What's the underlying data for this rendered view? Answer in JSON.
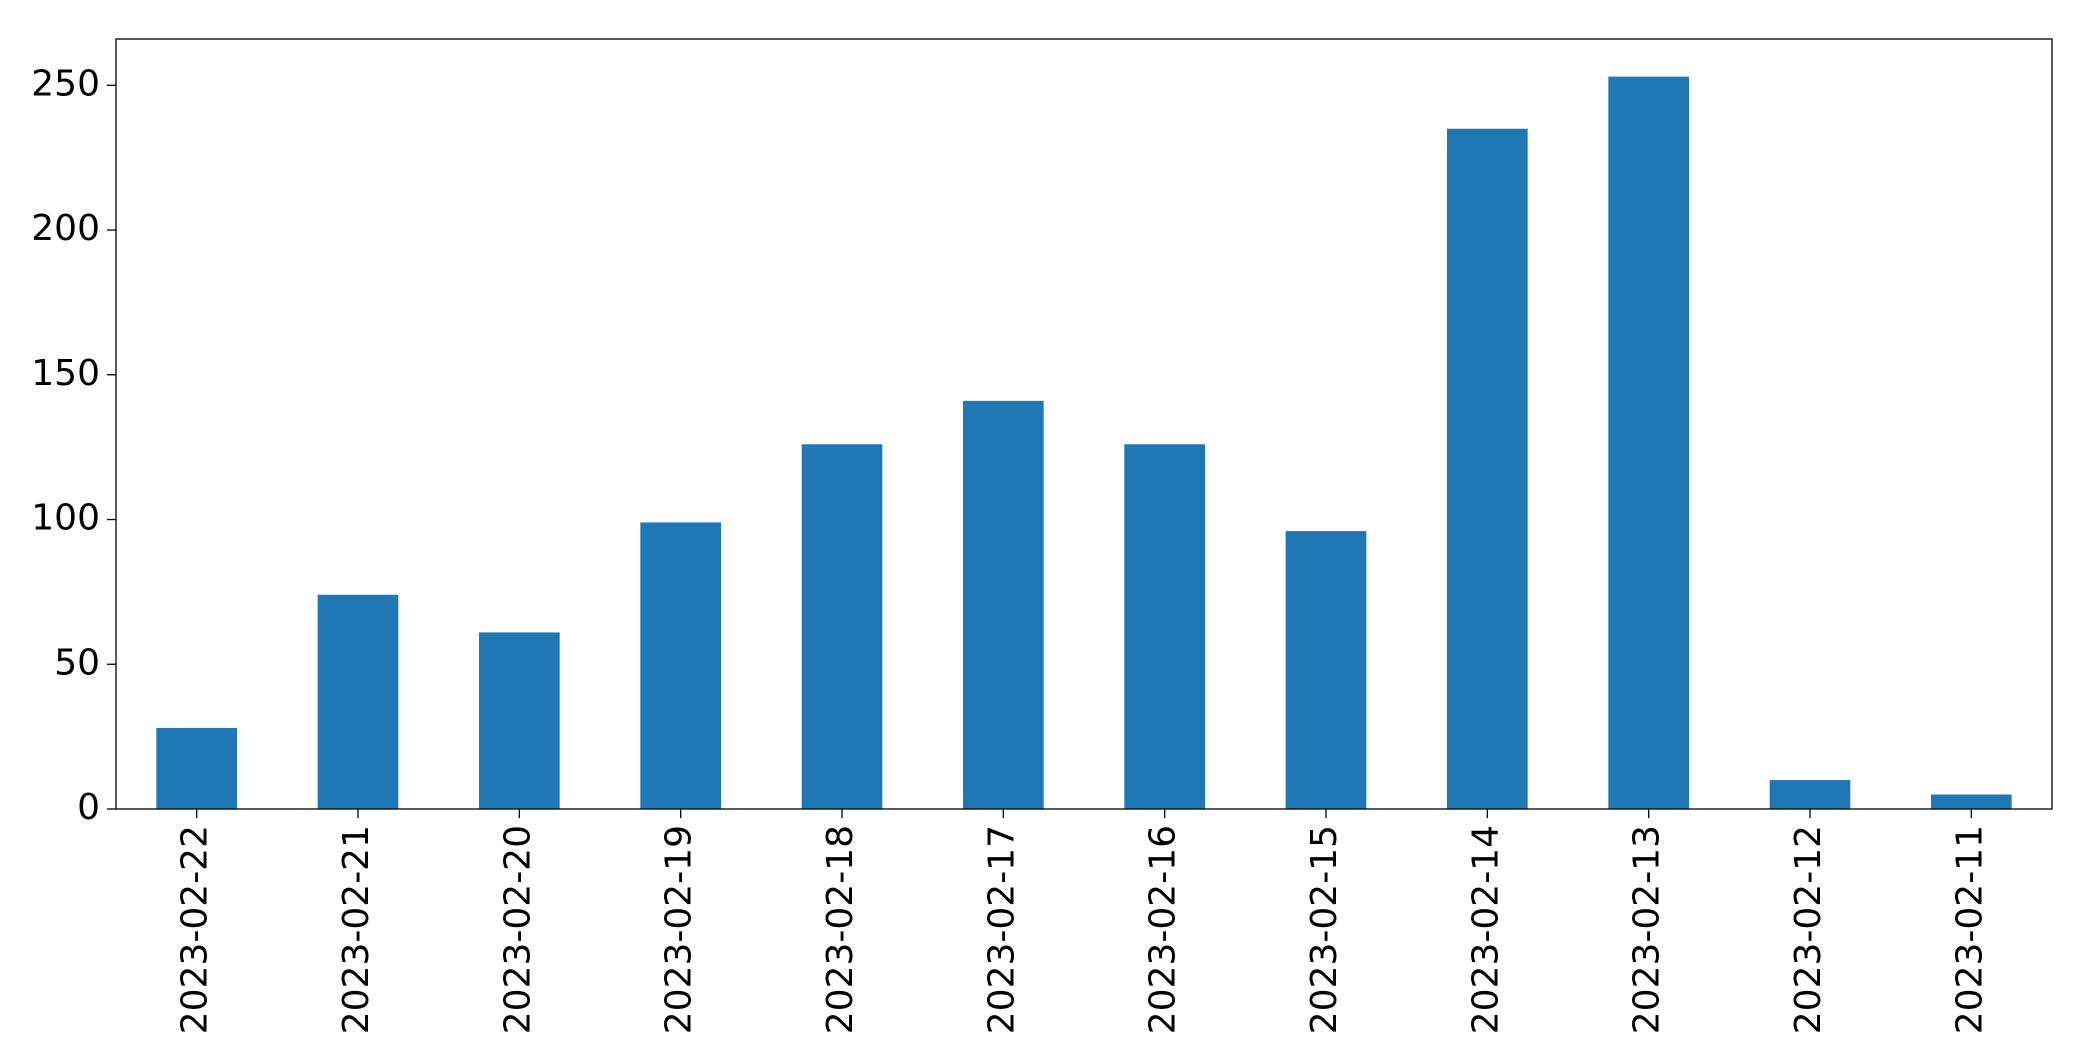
{
  "chart_data": {
    "type": "bar",
    "categories": [
      "2023-02-22",
      "2023-02-21",
      "2023-02-20",
      "2023-02-19",
      "2023-02-18",
      "2023-02-17",
      "2023-02-16",
      "2023-02-15",
      "2023-02-14",
      "2023-02-13",
      "2023-02-12",
      "2023-02-11"
    ],
    "values": [
      28,
      74,
      61,
      99,
      126,
      141,
      126,
      96,
      235,
      253,
      10,
      5
    ],
    "color": "#1f77b4",
    "ylim": [
      0,
      266
    ],
    "yticks": [
      0,
      50,
      100,
      150,
      200,
      250
    ],
    "grid": false
  }
}
